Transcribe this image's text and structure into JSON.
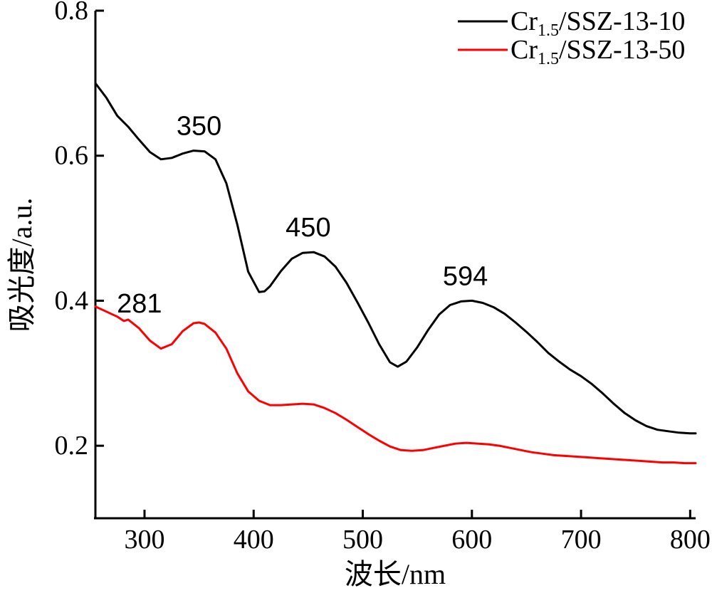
{
  "chart_data": {
    "type": "line",
    "xlabel": "波长/nm",
    "ylabel": "吸光度/a.u.",
    "xlim": [
      255,
      805
    ],
    "ylim": [
      0.1,
      0.8
    ],
    "xticks": [
      300,
      400,
      500,
      600,
      700,
      800
    ],
    "yticks": [
      0.2,
      0.4,
      0.6,
      0.8
    ],
    "xtick_labels": [
      "300",
      "400",
      "500",
      "600",
      "700",
      "800"
    ],
    "ytick_labels": [
      "0.2",
      "0.4",
      "0.6",
      "0.8"
    ],
    "legend_position": "top-right",
    "grid": false,
    "series": [
      {
        "name_main": "Cr",
        "name_sub": "1.5",
        "name_rest": "/SSZ-13-10",
        "color": "#000000",
        "x": [
          255,
          265,
          275,
          285,
          295,
          305,
          315,
          325,
          335,
          345,
          355,
          365,
          375,
          385,
          395,
          405,
          410,
          415,
          425,
          435,
          445,
          455,
          465,
          475,
          485,
          495,
          505,
          515,
          525,
          532,
          540,
          550,
          560,
          570,
          580,
          590,
          600,
          610,
          620,
          630,
          640,
          650,
          660,
          670,
          680,
          690,
          700,
          710,
          720,
          730,
          740,
          750,
          760,
          770,
          780,
          790,
          800,
          805
        ],
        "y": [
          0.7,
          0.68,
          0.655,
          0.64,
          0.622,
          0.605,
          0.595,
          0.597,
          0.603,
          0.607,
          0.606,
          0.595,
          0.562,
          0.505,
          0.44,
          0.412,
          0.413,
          0.42,
          0.441,
          0.458,
          0.466,
          0.467,
          0.461,
          0.447,
          0.425,
          0.398,
          0.37,
          0.34,
          0.315,
          0.309,
          0.316,
          0.336,
          0.36,
          0.381,
          0.394,
          0.399,
          0.4,
          0.397,
          0.391,
          0.382,
          0.37,
          0.357,
          0.343,
          0.328,
          0.316,
          0.305,
          0.296,
          0.285,
          0.272,
          0.258,
          0.245,
          0.235,
          0.227,
          0.222,
          0.22,
          0.218,
          0.217,
          0.217
        ]
      },
      {
        "name_main": "Cr",
        "name_sub": "1.5",
        "name_rest": "/SSZ-13-50",
        "color": "#ff0000",
        "x": [
          255,
          265,
          275,
          281,
          285,
          295,
          305,
          315,
          325,
          335,
          345,
          350,
          355,
          365,
          375,
          385,
          395,
          405,
          415,
          425,
          435,
          445,
          455,
          465,
          475,
          485,
          495,
          505,
          515,
          525,
          535,
          545,
          555,
          565,
          575,
          585,
          595,
          605,
          615,
          625,
          635,
          645,
          655,
          665,
          675,
          685,
          695,
          705,
          715,
          725,
          735,
          745,
          755,
          765,
          775,
          785,
          795,
          805
        ],
        "y": [
          0.392,
          0.385,
          0.378,
          0.372,
          0.374,
          0.362,
          0.345,
          0.334,
          0.34,
          0.358,
          0.369,
          0.37,
          0.368,
          0.356,
          0.334,
          0.3,
          0.275,
          0.262,
          0.256,
          0.256,
          0.257,
          0.258,
          0.257,
          0.252,
          0.245,
          0.236,
          0.226,
          0.216,
          0.207,
          0.199,
          0.194,
          0.193,
          0.194,
          0.197,
          0.2,
          0.203,
          0.204,
          0.203,
          0.202,
          0.2,
          0.197,
          0.194,
          0.191,
          0.189,
          0.187,
          0.186,
          0.185,
          0.184,
          0.183,
          0.182,
          0.181,
          0.18,
          0.179,
          0.178,
          0.177,
          0.177,
          0.176,
          0.176
        ]
      }
    ],
    "annotations": [
      {
        "text": "350",
        "x": 350,
        "y": 0.607
      },
      {
        "text": "450",
        "x": 450,
        "y": 0.467
      },
      {
        "text": "594",
        "x": 594,
        "y": 0.4
      },
      {
        "text": "281",
        "x": 281,
        "y": 0.372
      }
    ]
  }
}
